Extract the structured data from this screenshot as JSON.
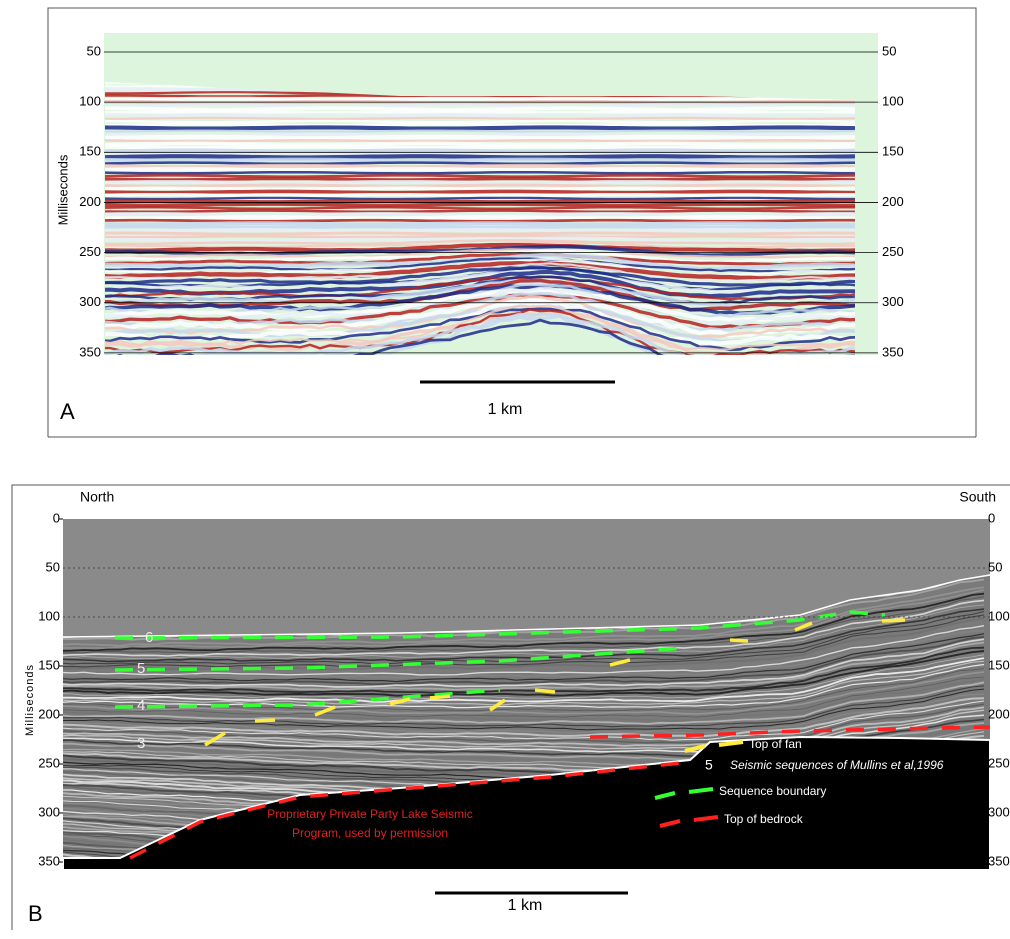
{
  "panel_a": {
    "letter": "A",
    "axis_label": "Milliseconds",
    "ticks": [
      50,
      100,
      150,
      200,
      250,
      300,
      350
    ],
    "scale_label": "1 km"
  },
  "panel_b": {
    "letter": "B",
    "axis_label": "Milliseconds",
    "ticks": [
      0,
      50,
      100,
      150,
      200,
      250,
      300,
      350
    ],
    "left_label": "North",
    "right_label": "South",
    "scale_label": "1 km",
    "sequences": [
      "6",
      "5",
      "4",
      "3"
    ],
    "legend": [
      {
        "label": "Top of fan",
        "color": "#ffeb3b"
      },
      {
        "symbol": "5",
        "label": "Seismic sequences of Mullins et al,1996"
      },
      {
        "label": "Sequence boundary",
        "color": "#33ff33"
      },
      {
        "label": "Top of bedrock",
        "color": "#ff2020"
      }
    ],
    "credit": [
      "Proprietary Private Party Lake Seismic",
      "Program, used by permission"
    ]
  }
}
